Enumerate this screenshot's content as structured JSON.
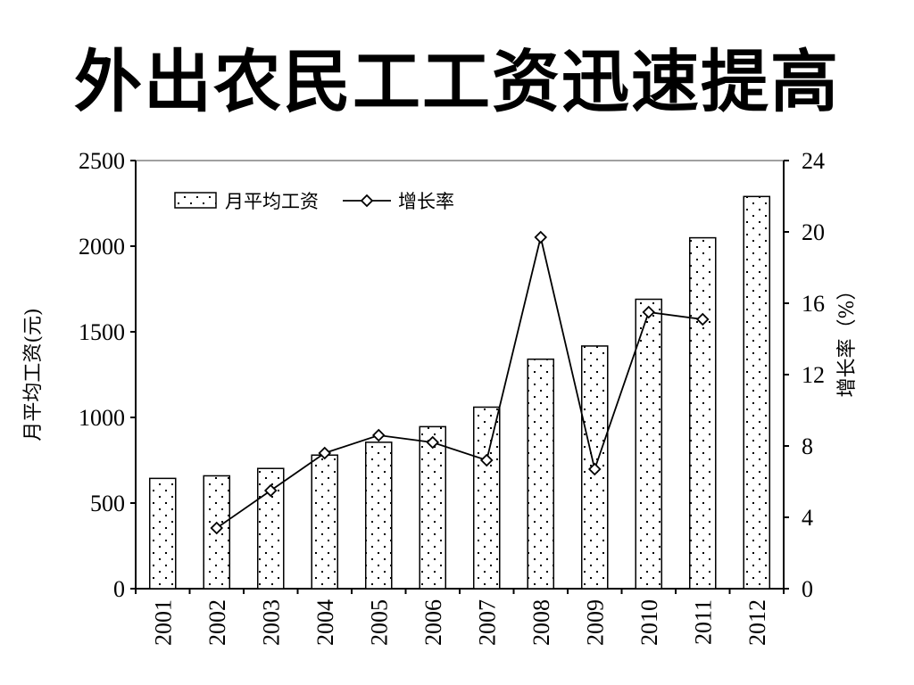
{
  "page": {
    "title": "外出农民工工资迅速提高"
  },
  "chart_data": {
    "type": "bar",
    "title": "外出农民工工资迅速提高",
    "categories": [
      "2001",
      "2002",
      "2003",
      "2004",
      "2005",
      "2006",
      "2007",
      "2008",
      "2009",
      "2010",
      "2011",
      "2012"
    ],
    "series": [
      {
        "name": "月平均工资",
        "type": "bar",
        "axis": "left",
        "pattern": "dotted",
        "values": [
          644,
          659,
          702,
          780,
          855,
          946,
          1060,
          1340,
          1417,
          1690,
          2049,
          2290
        ]
      },
      {
        "name": "增长率",
        "type": "line",
        "axis": "right",
        "marker": "diamond",
        "values": [
          null,
          3.4,
          5.5,
          7.6,
          8.6,
          8.2,
          7.2,
          19.7,
          6.7,
          15.5,
          15.1,
          null
        ]
      }
    ],
    "ylabel": "月平均工资(元)",
    "ylim": [
      0,
      2500
    ],
    "yticks": [
      0,
      500,
      1000,
      1500,
      2000,
      2500
    ],
    "y2label": "增长率（%）",
    "y2lim": [
      0,
      24
    ],
    "y2ticks": [
      0,
      4,
      8,
      12,
      16,
      20,
      24
    ],
    "legend_position": "top-left",
    "grid": false
  }
}
